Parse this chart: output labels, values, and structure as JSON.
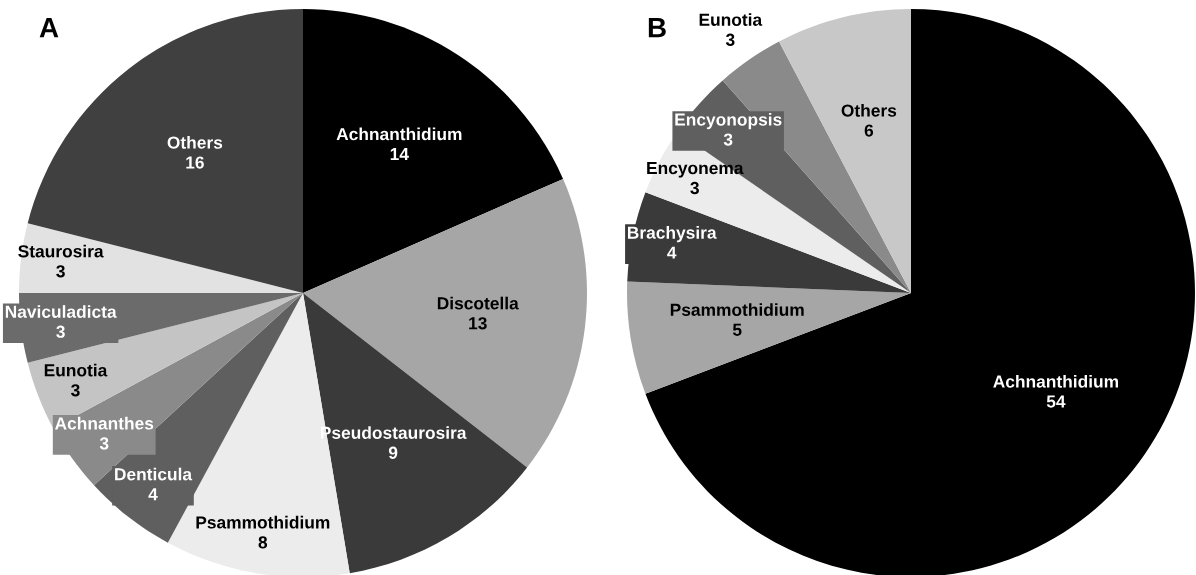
{
  "chart_data": [
    {
      "type": "pie",
      "title": "A",
      "categories": [
        "Achnanthidium",
        "Discotella",
        "Pseudostaurosira",
        "Psammothidium",
        "Denticula",
        "Achnanthes",
        "Eunotia",
        "Naviculadicta",
        "Staurosira",
        "Others"
      ],
      "values": [
        14,
        13,
        9,
        8,
        4,
        3,
        3,
        3,
        3,
        16
      ],
      "colors": [
        "#000000",
        "#a6a6a6",
        "#3a3a3a",
        "#ececec",
        "#5f5f5f",
        "#8a8a8a",
        "#c4c4c4",
        "#6b6b6b",
        "#e2e2e2",
        "#404040"
      ],
      "data_labels": true,
      "legend": false
    },
    {
      "type": "pie",
      "title": "B",
      "categories": [
        "Achnanthidium",
        "Psammothidium",
        "Brachysira",
        "Encyonema",
        "Encyonopsis",
        "Eunotia",
        "Others"
      ],
      "values": [
        54,
        5,
        4,
        3,
        3,
        3,
        6
      ],
      "colors": [
        "#000000",
        "#a6a6a6",
        "#3a3a3a",
        "#ececec",
        "#5f5f5f",
        "#8a8a8a",
        "#c8c8c8"
      ],
      "data_labels": true,
      "legend": false
    }
  ]
}
